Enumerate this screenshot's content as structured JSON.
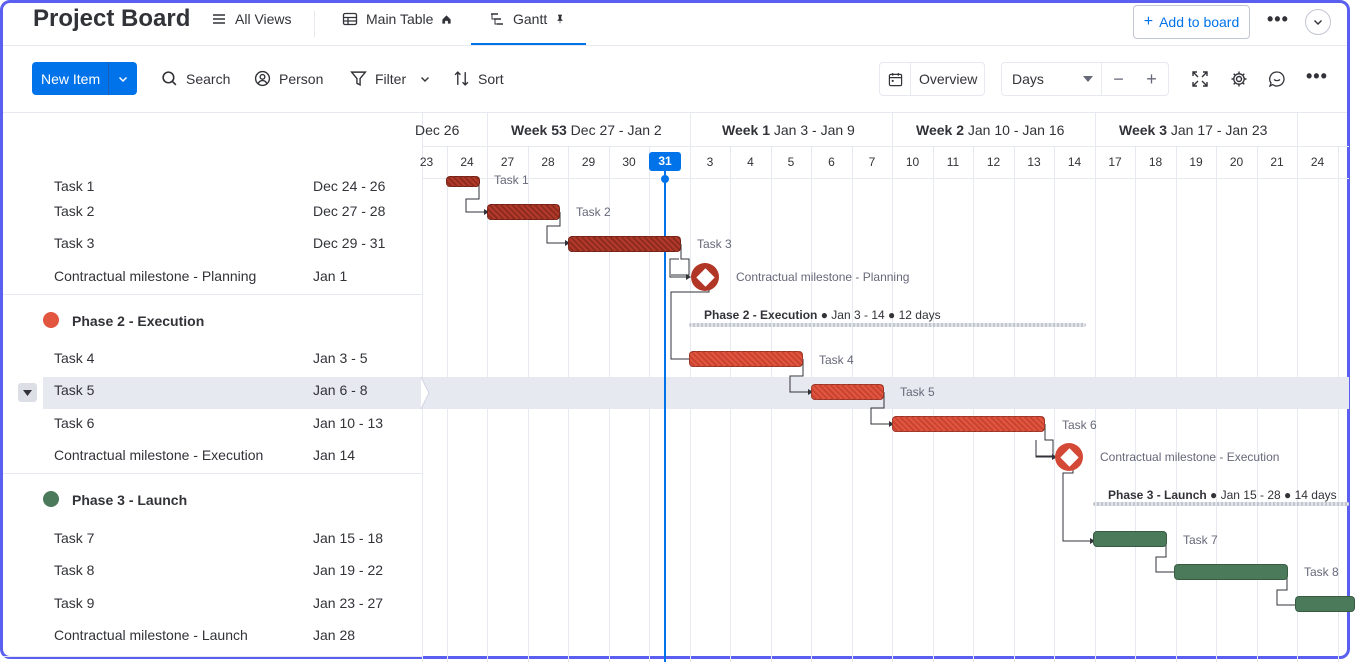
{
  "header": {
    "title": "Project Board",
    "views": [
      {
        "label": "All Views",
        "icon": "menu-icon"
      },
      {
        "label": "Main Table",
        "icon": "table-icon",
        "suffix_icon": "home-icon"
      },
      {
        "label": "Gantt",
        "icon": "gantt-icon",
        "suffix_icon": "pin-icon",
        "active": true
      }
    ],
    "add_to_board": "Add to board"
  },
  "toolbar": {
    "new_item": "New Item",
    "search": "Search",
    "person": "Person",
    "filter": "Filter",
    "sort": "Sort",
    "overview": "Overview",
    "scale": "Days"
  },
  "timeline": {
    "week_headers": [
      {
        "bold": "",
        "text": "Dec 26"
      },
      {
        "bold": "Week 53",
        "text": "Dec 27 - Jan 2"
      },
      {
        "bold": "Week 1",
        "text": "Jan 3 - Jan 9"
      },
      {
        "bold": "Week 2",
        "text": "Jan 10 - Jan 16"
      },
      {
        "bold": "Week 3",
        "text": "Jan 17 - Jan 23"
      }
    ],
    "days": [
      "23",
      "24",
      "27",
      "28",
      "29",
      "30",
      "31",
      "3",
      "4",
      "5",
      "6",
      "7",
      "10",
      "11",
      "12",
      "13",
      "14",
      "17",
      "18",
      "19",
      "20",
      "21",
      "24"
    ],
    "today": "31"
  },
  "groups": [
    {
      "name": "",
      "color": "#e2553f",
      "items": [
        {
          "name": "Task 1",
          "date": "Dec 24 - 26"
        },
        {
          "name": "Task 2",
          "date": "Dec 27 - 28"
        },
        {
          "name": "Task 3",
          "date": "Dec 29 - 31"
        },
        {
          "name": "Contractual milestone - Planning",
          "date": "Jan 1"
        }
      ]
    },
    {
      "name": "Phase 2 - Execution",
      "color": "#e2553f",
      "summary_name": "Phase 2 - Execution",
      "summary_range": "Jan 3 - 14",
      "summary_days": "12 days",
      "items": [
        {
          "name": "Task 4",
          "date": "Jan 3 - 5"
        },
        {
          "name": "Task 5",
          "date": "Jan 6 - 8"
        },
        {
          "name": "Task 6",
          "date": "Jan 10 - 13"
        },
        {
          "name": "Contractual milestone - Execution",
          "date": "Jan 14"
        }
      ]
    },
    {
      "name": "Phase 3 - Launch",
      "color": "#4b7a5b",
      "summary_name": "Phase 3 - Launch",
      "summary_range": "Jan 15 - 28",
      "summary_days": "14 days",
      "items": [
        {
          "name": "Task 7",
          "date": "Jan 15 - 18"
        },
        {
          "name": "Task 8",
          "date": "Jan 19 - 22"
        },
        {
          "name": "Task 9",
          "date": "Jan 23 - 27"
        },
        {
          "name": "Contractual milestone - Launch",
          "date": "Jan 28"
        }
      ]
    }
  ],
  "colors": {
    "accent": "#0073ea",
    "phase2": "#e2553f",
    "phase3": "#4b7a5b"
  }
}
